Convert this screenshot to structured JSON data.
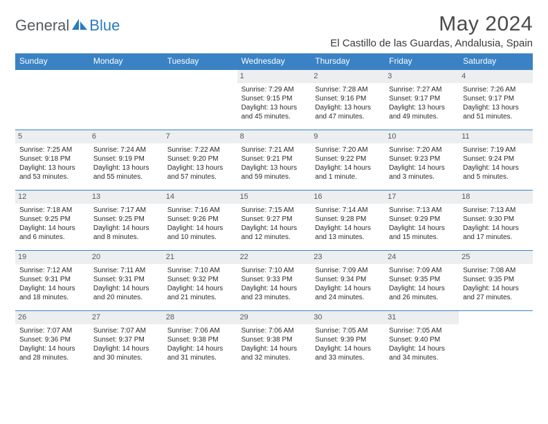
{
  "logo": {
    "general": "General",
    "blue": "Blue"
  },
  "title": "May 2024",
  "location": "El Castillo de las Guardas, Andalusia, Spain",
  "colors": {
    "header_bg": "#3a82c4",
    "header_text": "#ffffff",
    "daynum_bg": "#eceef0",
    "daynum_text": "#555a5f",
    "border": "#3a82c4",
    "logo_gray": "#555a5f",
    "logo_blue": "#2b7bbf"
  },
  "dow": [
    "Sunday",
    "Monday",
    "Tuesday",
    "Wednesday",
    "Thursday",
    "Friday",
    "Saturday"
  ],
  "weeks": [
    [
      {
        "n": "",
        "sr": "",
        "ss": "",
        "dl": ""
      },
      {
        "n": "",
        "sr": "",
        "ss": "",
        "dl": ""
      },
      {
        "n": "",
        "sr": "",
        "ss": "",
        "dl": ""
      },
      {
        "n": "1",
        "sr": "Sunrise: 7:29 AM",
        "ss": "Sunset: 9:15 PM",
        "dl": "Daylight: 13 hours and 45 minutes."
      },
      {
        "n": "2",
        "sr": "Sunrise: 7:28 AM",
        "ss": "Sunset: 9:16 PM",
        "dl": "Daylight: 13 hours and 47 minutes."
      },
      {
        "n": "3",
        "sr": "Sunrise: 7:27 AM",
        "ss": "Sunset: 9:17 PM",
        "dl": "Daylight: 13 hours and 49 minutes."
      },
      {
        "n": "4",
        "sr": "Sunrise: 7:26 AM",
        "ss": "Sunset: 9:17 PM",
        "dl": "Daylight: 13 hours and 51 minutes."
      }
    ],
    [
      {
        "n": "5",
        "sr": "Sunrise: 7:25 AM",
        "ss": "Sunset: 9:18 PM",
        "dl": "Daylight: 13 hours and 53 minutes."
      },
      {
        "n": "6",
        "sr": "Sunrise: 7:24 AM",
        "ss": "Sunset: 9:19 PM",
        "dl": "Daylight: 13 hours and 55 minutes."
      },
      {
        "n": "7",
        "sr": "Sunrise: 7:22 AM",
        "ss": "Sunset: 9:20 PM",
        "dl": "Daylight: 13 hours and 57 minutes."
      },
      {
        "n": "8",
        "sr": "Sunrise: 7:21 AM",
        "ss": "Sunset: 9:21 PM",
        "dl": "Daylight: 13 hours and 59 minutes."
      },
      {
        "n": "9",
        "sr": "Sunrise: 7:20 AM",
        "ss": "Sunset: 9:22 PM",
        "dl": "Daylight: 14 hours and 1 minute."
      },
      {
        "n": "10",
        "sr": "Sunrise: 7:20 AM",
        "ss": "Sunset: 9:23 PM",
        "dl": "Daylight: 14 hours and 3 minutes."
      },
      {
        "n": "11",
        "sr": "Sunrise: 7:19 AM",
        "ss": "Sunset: 9:24 PM",
        "dl": "Daylight: 14 hours and 5 minutes."
      }
    ],
    [
      {
        "n": "12",
        "sr": "Sunrise: 7:18 AM",
        "ss": "Sunset: 9:25 PM",
        "dl": "Daylight: 14 hours and 6 minutes."
      },
      {
        "n": "13",
        "sr": "Sunrise: 7:17 AM",
        "ss": "Sunset: 9:25 PM",
        "dl": "Daylight: 14 hours and 8 minutes."
      },
      {
        "n": "14",
        "sr": "Sunrise: 7:16 AM",
        "ss": "Sunset: 9:26 PM",
        "dl": "Daylight: 14 hours and 10 minutes."
      },
      {
        "n": "15",
        "sr": "Sunrise: 7:15 AM",
        "ss": "Sunset: 9:27 PM",
        "dl": "Daylight: 14 hours and 12 minutes."
      },
      {
        "n": "16",
        "sr": "Sunrise: 7:14 AM",
        "ss": "Sunset: 9:28 PM",
        "dl": "Daylight: 14 hours and 13 minutes."
      },
      {
        "n": "17",
        "sr": "Sunrise: 7:13 AM",
        "ss": "Sunset: 9:29 PM",
        "dl": "Daylight: 14 hours and 15 minutes."
      },
      {
        "n": "18",
        "sr": "Sunrise: 7:13 AM",
        "ss": "Sunset: 9:30 PM",
        "dl": "Daylight: 14 hours and 17 minutes."
      }
    ],
    [
      {
        "n": "19",
        "sr": "Sunrise: 7:12 AM",
        "ss": "Sunset: 9:31 PM",
        "dl": "Daylight: 14 hours and 18 minutes."
      },
      {
        "n": "20",
        "sr": "Sunrise: 7:11 AM",
        "ss": "Sunset: 9:31 PM",
        "dl": "Daylight: 14 hours and 20 minutes."
      },
      {
        "n": "21",
        "sr": "Sunrise: 7:10 AM",
        "ss": "Sunset: 9:32 PM",
        "dl": "Daylight: 14 hours and 21 minutes."
      },
      {
        "n": "22",
        "sr": "Sunrise: 7:10 AM",
        "ss": "Sunset: 9:33 PM",
        "dl": "Daylight: 14 hours and 23 minutes."
      },
      {
        "n": "23",
        "sr": "Sunrise: 7:09 AM",
        "ss": "Sunset: 9:34 PM",
        "dl": "Daylight: 14 hours and 24 minutes."
      },
      {
        "n": "24",
        "sr": "Sunrise: 7:09 AM",
        "ss": "Sunset: 9:35 PM",
        "dl": "Daylight: 14 hours and 26 minutes."
      },
      {
        "n": "25",
        "sr": "Sunrise: 7:08 AM",
        "ss": "Sunset: 9:35 PM",
        "dl": "Daylight: 14 hours and 27 minutes."
      }
    ],
    [
      {
        "n": "26",
        "sr": "Sunrise: 7:07 AM",
        "ss": "Sunset: 9:36 PM",
        "dl": "Daylight: 14 hours and 28 minutes."
      },
      {
        "n": "27",
        "sr": "Sunrise: 7:07 AM",
        "ss": "Sunset: 9:37 PM",
        "dl": "Daylight: 14 hours and 30 minutes."
      },
      {
        "n": "28",
        "sr": "Sunrise: 7:06 AM",
        "ss": "Sunset: 9:38 PM",
        "dl": "Daylight: 14 hours and 31 minutes."
      },
      {
        "n": "29",
        "sr": "Sunrise: 7:06 AM",
        "ss": "Sunset: 9:38 PM",
        "dl": "Daylight: 14 hours and 32 minutes."
      },
      {
        "n": "30",
        "sr": "Sunrise: 7:05 AM",
        "ss": "Sunset: 9:39 PM",
        "dl": "Daylight: 14 hours and 33 minutes."
      },
      {
        "n": "31",
        "sr": "Sunrise: 7:05 AM",
        "ss": "Sunset: 9:40 PM",
        "dl": "Daylight: 14 hours and 34 minutes."
      },
      {
        "n": "",
        "sr": "",
        "ss": "",
        "dl": ""
      }
    ]
  ]
}
